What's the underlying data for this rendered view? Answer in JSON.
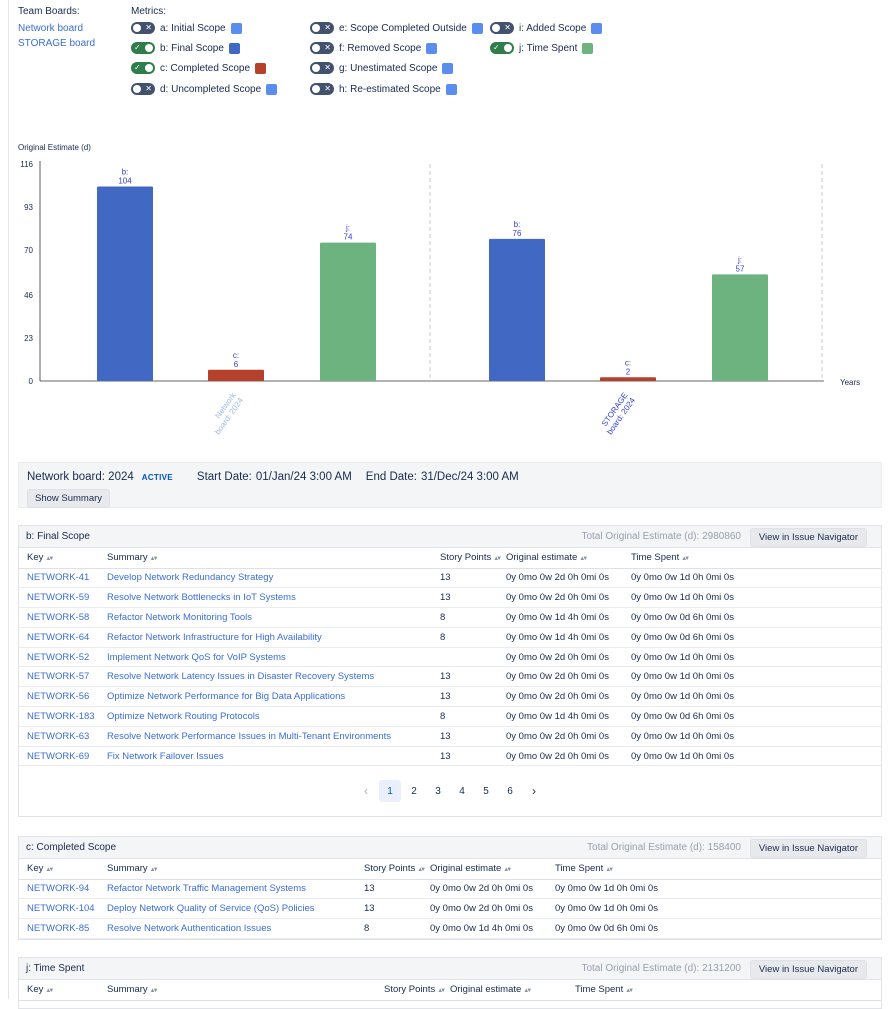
{
  "team_boards": {
    "label": "Team Boards:",
    "items": [
      "Network board",
      "STORAGE board"
    ]
  },
  "metrics": {
    "label": "Metrics:",
    "items": [
      {
        "label": "a: Initial Scope",
        "on": false,
        "color": "#5b8def"
      },
      {
        "label": "b: Final Scope",
        "on": true,
        "color": "#4169c4"
      },
      {
        "label": "c: Completed Scope",
        "on": true,
        "color": "#b5402b"
      },
      {
        "label": "d: Uncompleted Scope",
        "on": false,
        "color": "#5b8def"
      },
      {
        "label": "e: Scope Completed Outside",
        "on": false,
        "color": "#5b8def"
      },
      {
        "label": "f: Removed Scope",
        "on": false,
        "color": "#5b8def"
      },
      {
        "label": "g: Unestimated Scope",
        "on": false,
        "color": "#5b8def"
      },
      {
        "label": "h: Re-estimated Scope",
        "on": false,
        "color": "#5b8def"
      },
      {
        "label": "i: Added Scope",
        "on": false,
        "color": "#5b8def"
      },
      {
        "label": "j: Time Spent",
        "on": true,
        "color": "#6db37f"
      }
    ]
  },
  "chart_data": {
    "type": "bar",
    "ylabel": "Original Estimate (d)",
    "xlabel": "Years",
    "ylim": [
      0,
      116
    ],
    "yticks": [
      0,
      23,
      46,
      70,
      93,
      116
    ],
    "categories": [
      "Network board: 2024",
      "STORAGE board: 2024"
    ],
    "series": [
      {
        "name": "b",
        "color": "#4169c4",
        "values": [
          104,
          76
        ]
      },
      {
        "name": "c",
        "color": "#b5402b",
        "values": [
          6,
          2
        ]
      },
      {
        "name": "j",
        "color": "#6db37f",
        "values": [
          74,
          57
        ]
      }
    ]
  },
  "info": {
    "board": "Network board: 2024",
    "status": "ACTIVE",
    "start_label": "Start Date:",
    "start": "01/Jan/24 3:00 AM",
    "end_label": "End Date:",
    "end": "31/Dec/24 3:00 AM",
    "summary_btn": "Show Summary"
  },
  "columns": {
    "key": "Key",
    "summary": "Summary",
    "points": "Story Points",
    "estimate": "Original estimate",
    "spent": "Time Spent"
  },
  "sections": [
    {
      "title": "b: Final Scope",
      "total": "Total Original Estimate (d): 2980860",
      "button": "View in Issue Navigator",
      "rows": [
        {
          "key": "NETWORK-41",
          "summary": "Develop Network Redundancy Strategy",
          "points": "13",
          "estimate": "0y 0mo 0w 2d 0h 0mi 0s",
          "spent": "0y 0mo 0w 1d 0h 0mi 0s"
        },
        {
          "key": "NETWORK-59",
          "summary": "Resolve Network Bottlenecks in IoT Systems",
          "points": "13",
          "estimate": "0y 0mo 0w 2d 0h 0mi 0s",
          "spent": "0y 0mo 0w 1d 0h 0mi 0s"
        },
        {
          "key": "NETWORK-58",
          "summary": "Refactor Network Monitoring Tools",
          "points": "8",
          "estimate": "0y 0mo 0w 1d 4h 0mi 0s",
          "spent": "0y 0mo 0w 0d 6h 0mi 0s"
        },
        {
          "key": "NETWORK-64",
          "summary": "Refactor Network Infrastructure for High Availability",
          "points": "8",
          "estimate": "0y 0mo 0w 1d 4h 0mi 0s",
          "spent": "0y 0mo 0w 0d 6h 0mi 0s"
        },
        {
          "key": "NETWORK-52",
          "summary": "Implement Network QoS for VoIP Systems",
          "points": "",
          "estimate": "0y 0mo 0w 2d 0h 0mi 0s",
          "spent": "0y 0mo 0w 1d 0h 0mi 0s"
        },
        {
          "key": "NETWORK-57",
          "summary": "Resolve Network Latency Issues in Disaster Recovery Systems",
          "points": "13",
          "estimate": "0y 0mo 0w 2d 0h 0mi 0s",
          "spent": "0y 0mo 0w 1d 0h 0mi 0s"
        },
        {
          "key": "NETWORK-56",
          "summary": "Optimize Network Performance for Big Data Applications",
          "points": "13",
          "estimate": "0y 0mo 0w 2d 0h 0mi 0s",
          "spent": "0y 0mo 0w 1d 0h 0mi 0s"
        },
        {
          "key": "NETWORK-183",
          "summary": "Optimize Network Routing Protocols",
          "points": "8",
          "estimate": "0y 0mo 0w 1d 4h 0mi 0s",
          "spent": "0y 0mo 0w 0d 6h 0mi 0s"
        },
        {
          "key": "NETWORK-63",
          "summary": "Resolve Network Performance Issues in Multi-Tenant Environments",
          "points": "13",
          "estimate": "0y 0mo 0w 2d 0h 0mi 0s",
          "spent": "0y 0mo 0w 1d 0h 0mi 0s"
        },
        {
          "key": "NETWORK-69",
          "summary": "Fix Network Failover Issues",
          "points": "13",
          "estimate": "0y 0mo 0w 2d 0h 0mi 0s",
          "spent": "0y 0mo 0w 1d 0h 0mi 0s"
        }
      ],
      "pager": {
        "pages": [
          "1",
          "2",
          "3",
          "4",
          "5",
          "6"
        ],
        "current": 1
      }
    },
    {
      "title": "c: Completed Scope",
      "total": "Total Original Estimate (d): 158400",
      "button": "View in Issue Navigator",
      "rows": [
        {
          "key": "NETWORK-94",
          "summary": "Refactor Network Traffic Management Systems",
          "points": "13",
          "estimate": "0y 0mo 0w 2d 0h 0mi 0s",
          "spent": "0y 0mo 0w 1d 0h 0mi 0s"
        },
        {
          "key": "NETWORK-104",
          "summary": "Deploy Network Quality of Service (QoS) Policies",
          "points": "13",
          "estimate": "0y 0mo 0w 2d 0h 0mi 0s",
          "spent": "0y 0mo 0w 1d 0h 0mi 0s"
        },
        {
          "key": "NETWORK-85",
          "summary": "Resolve Network Authentication Issues",
          "points": "8",
          "estimate": "0y 0mo 0w 1d 4h 0mi 0s",
          "spent": "0y 0mo 0w 0d 6h 0mi 0s"
        }
      ]
    },
    {
      "title": "j: Time Spent",
      "total": "Total Original Estimate (d): 2131200",
      "button": "View in Issue Navigator",
      "rows": []
    }
  ]
}
